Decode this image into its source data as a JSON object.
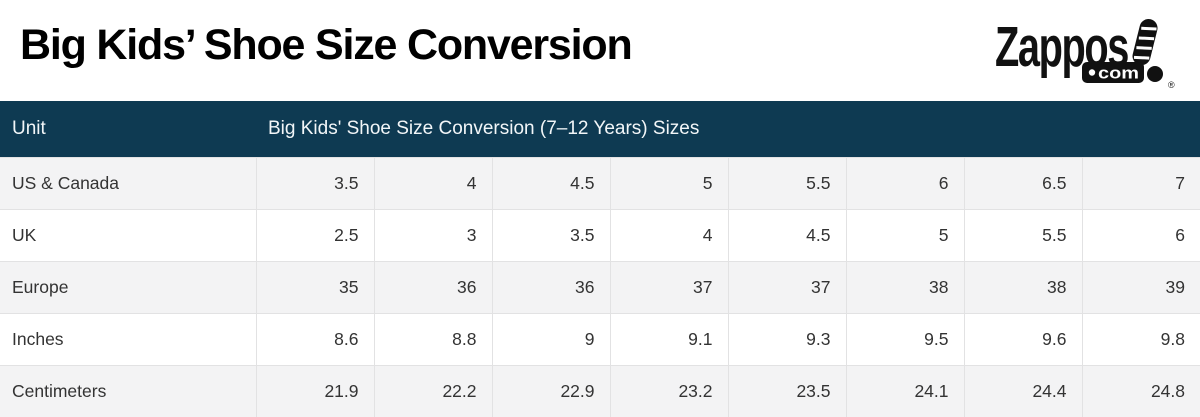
{
  "page": {
    "title": "Big Kids’ Shoe Size Conversion"
  },
  "logo": {
    "brand": "Zappos",
    "domain": "com",
    "registered": "®"
  },
  "table": {
    "header": {
      "unit": "Unit",
      "sizes": "Big Kids' Shoe Size Conversion (7–12 Years) Sizes"
    },
    "rows": [
      {
        "label": "US & Canada",
        "values": [
          "3.5",
          "4",
          "4.5",
          "5",
          "5.5",
          "6",
          "6.5",
          "7"
        ]
      },
      {
        "label": "UK",
        "values": [
          "2.5",
          "3",
          "3.5",
          "4",
          "4.5",
          "5",
          "5.5",
          "6"
        ]
      },
      {
        "label": "Europe",
        "values": [
          "35",
          "36",
          "36",
          "37",
          "37",
          "38",
          "38",
          "39"
        ]
      },
      {
        "label": "Inches",
        "values": [
          "8.6",
          "8.8",
          "9",
          "9.1",
          "9.3",
          "9.5",
          "9.6",
          "9.8"
        ]
      },
      {
        "label": "Centimeters",
        "values": [
          "21.9",
          "22.2",
          "22.9",
          "23.2",
          "23.5",
          "24.1",
          "24.4",
          "24.8"
        ]
      }
    ]
  },
  "colors": {
    "header_bg": "#0e3a52",
    "header_text": "#f2f6f8",
    "row_alt_bg": "#f3f3f4",
    "row_bg": "#ffffff",
    "cell_border": "#e2e2e3",
    "body_text": "#333333",
    "title_text": "#000000",
    "logo_black": "#111111"
  },
  "chart_data": {
    "type": "table",
    "title": "Big Kids’ Shoe Size Conversion",
    "subtitle": "Big Kids' Shoe Size Conversion (7–12 Years) Sizes",
    "row_header_column": "Unit",
    "rows": [
      {
        "unit": "US & Canada",
        "values": [
          3.5,
          4,
          4.5,
          5,
          5.5,
          6,
          6.5,
          7
        ]
      },
      {
        "unit": "UK",
        "values": [
          2.5,
          3,
          3.5,
          4,
          4.5,
          5,
          5.5,
          6
        ]
      },
      {
        "unit": "Europe",
        "values": [
          35,
          36,
          36,
          37,
          37,
          38,
          38,
          39
        ]
      },
      {
        "unit": "Inches",
        "values": [
          8.6,
          8.8,
          9,
          9.1,
          9.3,
          9.5,
          9.6,
          9.8
        ]
      },
      {
        "unit": "Centimeters",
        "values": [
          21.9,
          22.2,
          22.9,
          23.2,
          23.5,
          24.1,
          24.4,
          24.8
        ]
      }
    ]
  }
}
